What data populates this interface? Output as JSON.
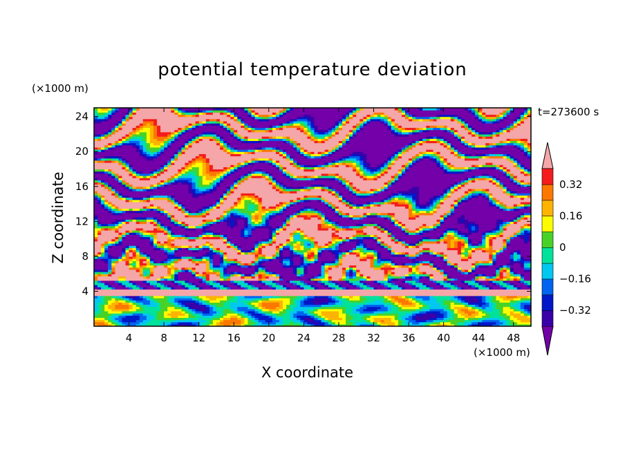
{
  "chart_data": {
    "type": "heatmap",
    "title": "potential temperature deviation",
    "xlabel": "X coordinate",
    "ylabel": "Z coordinate",
    "x_unit_label": "(×1000 m)",
    "y_unit_label": "(×1000 m)",
    "time_label": "t=273600 s",
    "xlim": [
      0,
      50
    ],
    "ylim": [
      0,
      25
    ],
    "x_ticks": [
      "4",
      "8",
      "12",
      "16",
      "20",
      "24",
      "28",
      "32",
      "36",
      "40",
      "44",
      "48"
    ],
    "y_ticks": [
      "4",
      "8",
      "12",
      "16",
      "20",
      "24"
    ],
    "colorbar": {
      "labels": [
        "0.32",
        "0.16",
        "0",
        "-0.16",
        "-0.32"
      ],
      "label_values": [
        0.32,
        0.16,
        0,
        -0.16,
        -0.32
      ],
      "levels": [
        -0.4,
        -0.32,
        -0.24,
        -0.16,
        -0.08,
        0,
        0.08,
        0.16,
        0.24,
        0.32,
        0.4
      ],
      "under_color": "#7300a8",
      "over_color": "#f4a6a8",
      "colors": [
        "#3a00a8",
        "#0018c8",
        "#0064f0",
        "#00c8f0",
        "#00e29a",
        "#48d228",
        "#fcfc00",
        "#fcb400",
        "#fc7800",
        "#f41c1c"
      ]
    },
    "layers": [
      {
        "z_range": [
          0,
          3.5
        ],
        "description": "convective boundary layer with mixed small-amplitude values"
      },
      {
        "z_range": [
          3.5,
          5
        ],
        "description": "strong deviation band"
      },
      {
        "z_range": [
          5,
          25
        ],
        "description": "alternating positive and negative layers"
      }
    ]
  }
}
